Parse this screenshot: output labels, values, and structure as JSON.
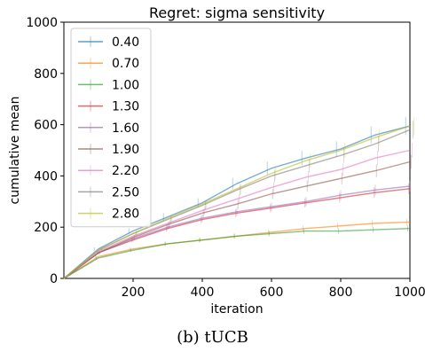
{
  "caption": "(b) tUCB",
  "chart_data": {
    "type": "line",
    "title": "Regret: sigma sensitivity",
    "xlabel": "iteration",
    "ylabel": "cumulative mean",
    "xlim": [
      0,
      1000
    ],
    "ylim": [
      0,
      1000
    ],
    "xticks": [
      200,
      400,
      600,
      800,
      1000
    ],
    "yticks": [
      0,
      200,
      400,
      600,
      800,
      1000
    ],
    "grid": false,
    "legend_position": "top-left",
    "x": [
      0,
      100,
      200,
      300,
      400,
      500,
      600,
      700,
      800,
      900,
      1000
    ],
    "series": [
      {
        "name": "0.40",
        "color": "#1f77b4",
        "values": [
          0,
          115,
          185,
          240,
          295,
          370,
          430,
          470,
          505,
          560,
          595
        ]
      },
      {
        "name": "0.70",
        "color": "#ff7f0e",
        "values": [
          0,
          85,
          115,
          135,
          150,
          165,
          180,
          195,
          205,
          215,
          220
        ]
      },
      {
        "name": "1.00",
        "color": "#2ca02c",
        "values": [
          0,
          80,
          110,
          135,
          150,
          165,
          175,
          185,
          185,
          190,
          195
        ]
      },
      {
        "name": "1.30",
        "color": "#d62728",
        "values": [
          0,
          100,
          150,
          195,
          230,
          255,
          275,
          295,
          315,
          335,
          350
        ]
      },
      {
        "name": "1.60",
        "color": "#9467bd",
        "values": [
          0,
          100,
          155,
          200,
          235,
          260,
          280,
          300,
          325,
          345,
          360
        ]
      },
      {
        "name": "1.90",
        "color": "#8c564b",
        "values": [
          0,
          100,
          160,
          210,
          255,
          290,
          330,
          360,
          390,
          420,
          455
        ]
      },
      {
        "name": "2.20",
        "color": "#e377c2",
        "values": [
          0,
          105,
          165,
          215,
          265,
          310,
          355,
          395,
          425,
          470,
          500
        ]
      },
      {
        "name": "2.50",
        "color": "#7f7f7f",
        "values": [
          0,
          110,
          175,
          230,
          285,
          345,
          400,
          440,
          480,
          525,
          580
        ]
      },
      {
        "name": "2.80",
        "color": "#bcbd22",
        "values": [
          0,
          110,
          175,
          235,
          290,
          350,
          410,
          460,
          500,
          550,
          595
        ]
      }
    ]
  }
}
